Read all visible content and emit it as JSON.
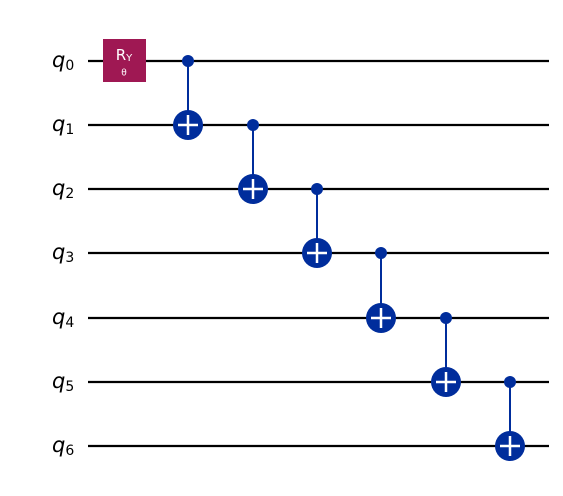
{
  "qubits": [
    {
      "name": "q",
      "index": "0"
    },
    {
      "name": "q",
      "index": "1"
    },
    {
      "name": "q",
      "index": "2"
    },
    {
      "name": "q",
      "index": "3"
    },
    {
      "name": "q",
      "index": "4"
    },
    {
      "name": "q",
      "index": "5"
    },
    {
      "name": "q",
      "index": "6"
    }
  ],
  "gate": {
    "name": "R",
    "subscript": "Y",
    "parameter": "θ"
  }
}
